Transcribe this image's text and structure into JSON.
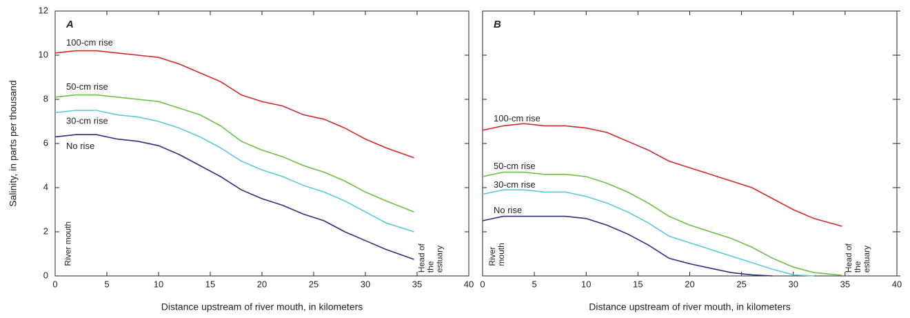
{
  "chart_data": [
    {
      "type": "line",
      "panel_label": "A",
      "x_label": "Distance upstream of river mouth, in kilometers",
      "y_label": "Salinity, in parts per thousand",
      "xlim": [
        0,
        40
      ],
      "xticks": [
        0,
        5,
        10,
        15,
        20,
        25,
        30,
        35,
        40
      ],
      "ylim": [
        0,
        12
      ],
      "yticks": [
        0,
        2,
        4,
        6,
        8,
        10,
        12
      ],
      "x": [
        0,
        2,
        4,
        6,
        8,
        10,
        12,
        14,
        16,
        18,
        20,
        22,
        24,
        26,
        28,
        30,
        32,
        34.7
      ],
      "series": [
        {
          "name": "100-cm rise",
          "color": "#d7262b",
          "values": [
            10.1,
            10.2,
            10.2,
            10.1,
            10.0,
            9.9,
            9.6,
            9.2,
            8.8,
            8.2,
            7.9,
            7.7,
            7.3,
            7.1,
            6.7,
            6.2,
            5.8,
            5.35
          ]
        },
        {
          "name": "50-cm rise",
          "color": "#6cbf45",
          "values": [
            8.1,
            8.2,
            8.2,
            8.1,
            8.0,
            7.9,
            7.6,
            7.3,
            6.8,
            6.1,
            5.7,
            5.4,
            5.0,
            4.7,
            4.3,
            3.8,
            3.4,
            2.9
          ]
        },
        {
          "name": "30-cm rise",
          "color": "#5bc8d6",
          "values": [
            7.4,
            7.5,
            7.5,
            7.3,
            7.2,
            7.0,
            6.7,
            6.3,
            5.8,
            5.2,
            4.8,
            4.5,
            4.1,
            3.8,
            3.4,
            2.9,
            2.4,
            2.0
          ]
        },
        {
          "name": "No rise",
          "color": "#2b2d7c",
          "values": [
            6.3,
            6.4,
            6.4,
            6.2,
            6.1,
            5.9,
            5.5,
            5.0,
            4.5,
            3.9,
            3.5,
            3.2,
            2.8,
            2.5,
            2.0,
            1.6,
            1.2,
            0.75
          ]
        }
      ],
      "annotations": [
        {
          "lines": [
            "River mouth"
          ]
        },
        {
          "lines": [
            "Head of",
            "the",
            "estuary"
          ]
        }
      ]
    },
    {
      "type": "line",
      "panel_label": "B",
      "x_label": "Distance upstream of river mouth, in kilometers",
      "xlim": [
        0,
        40
      ],
      "xticks": [
        0,
        5,
        10,
        15,
        20,
        25,
        30,
        35,
        40
      ],
      "ylim": [
        0,
        12
      ],
      "yticks": [
        0,
        2,
        4,
        6,
        8,
        10,
        12
      ],
      "x": [
        0,
        2,
        4,
        6,
        8,
        10,
        12,
        14,
        16,
        18,
        20,
        22,
        24,
        26,
        28,
        30,
        32,
        34.7
      ],
      "series": [
        {
          "name": "100-cm rise",
          "color": "#d7262b",
          "values": [
            6.6,
            6.8,
            6.9,
            6.8,
            6.8,
            6.7,
            6.5,
            6.1,
            5.7,
            5.2,
            4.9,
            4.6,
            4.3,
            4.0,
            3.5,
            3.0,
            2.6,
            2.25
          ]
        },
        {
          "name": "50-cm rise",
          "color": "#6cbf45",
          "values": [
            4.5,
            4.7,
            4.7,
            4.6,
            4.6,
            4.5,
            4.2,
            3.8,
            3.3,
            2.7,
            2.3,
            2.0,
            1.7,
            1.3,
            0.8,
            0.4,
            0.15,
            0.03
          ]
        },
        {
          "name": "30-cm rise",
          "color": "#5bc8d6",
          "values": [
            3.7,
            3.9,
            3.9,
            3.8,
            3.8,
            3.6,
            3.3,
            2.9,
            2.4,
            1.8,
            1.5,
            1.2,
            0.9,
            0.6,
            0.3,
            0.05,
            0,
            null
          ]
        },
        {
          "name": "No rise",
          "color": "#2b2d7c",
          "values": [
            2.5,
            2.7,
            2.7,
            2.7,
            2.7,
            2.6,
            2.3,
            1.9,
            1.4,
            0.8,
            0.55,
            0.35,
            0.15,
            0.05,
            0,
            null,
            null,
            null
          ]
        }
      ],
      "annotations": [
        {
          "lines": [
            "River",
            "mouth"
          ]
        },
        {
          "lines": [
            "Head of",
            "the",
            "estuary"
          ]
        }
      ]
    }
  ]
}
